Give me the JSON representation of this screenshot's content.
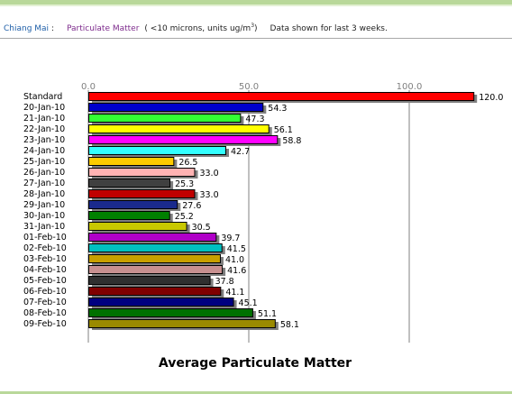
{
  "header": {
    "location": "Chiang Mai",
    "separator": ":",
    "parameter": "Particulate Matter",
    "units_prefix": "( <10 microns, units ug/m",
    "units_superscript": "3",
    "units_suffix": ")",
    "note": "Data shown for last 3 weeks."
  },
  "colors": {
    "header_location": "#1f5fa8",
    "header_parameter": "#7d2a8c",
    "bar_outline": "#000000",
    "bar_shadow": "#7f7f7f",
    "gridline": "#808080",
    "band": "#b9d89a"
  },
  "chart_data": {
    "type": "bar",
    "orientation": "horizontal",
    "title": "Average Particulate Matter",
    "xlim": [
      0,
      120
    ],
    "xticks": [
      0,
      50,
      100
    ],
    "xtick_labels": [
      "0.0",
      "50.0",
      "100.0"
    ],
    "xtick_position": "top",
    "grid": true,
    "categories": [
      "Standard",
      "20-Jan-10",
      "21-Jan-10",
      "22-Jan-10",
      "23-Jan-10",
      "24-Jan-10",
      "25-Jan-10",
      "26-Jan-10",
      "27-Jan-10",
      "28-Jan-10",
      "29-Jan-10",
      "30-Jan-10",
      "31-Jan-10",
      "01-Feb-10",
      "02-Feb-10",
      "03-Feb-10",
      "04-Feb-10",
      "05-Feb-10",
      "06-Feb-10",
      "07-Feb-10",
      "08-Feb-10",
      "09-Feb-10"
    ],
    "values": [
      120.0,
      54.3,
      47.3,
      56.1,
      58.8,
      42.7,
      26.5,
      33.0,
      25.3,
      33.0,
      27.6,
      25.2,
      30.5,
      39.7,
      41.5,
      41.0,
      41.6,
      37.8,
      41.1,
      45.1,
      51.1,
      58.1
    ],
    "value_labels": [
      "120.0",
      "54.3",
      "47.3",
      "56.1",
      "58.8",
      "42.7",
      "26.5",
      "33.0",
      "25.3",
      "33.0",
      "27.6",
      "25.2",
      "30.5",
      "39.7",
      "41.5",
      "41.0",
      "41.6",
      "37.8",
      "41.1",
      "45.1",
      "51.1",
      "58.1"
    ],
    "bar_colors": [
      "#ff0000",
      "#0000cc",
      "#33ff33",
      "#ffff00",
      "#ff00ff",
      "#33ffff",
      "#ffcc00",
      "#ffb3b3",
      "#404040",
      "#c00000",
      "#1a2a8c",
      "#008000",
      "#c8c800",
      "#b000c8",
      "#00c0c0",
      "#c8a000",
      "#c89090",
      "#303030",
      "#800000",
      "#000080",
      "#007000",
      "#9a8a00"
    ]
  }
}
